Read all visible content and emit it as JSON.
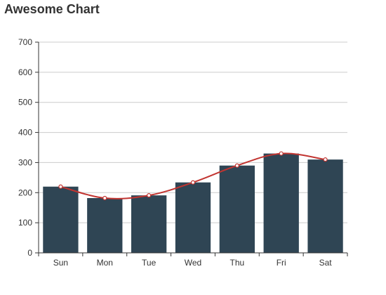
{
  "chart_data": {
    "type": "bar",
    "title": "Awesome Chart",
    "categories": [
      "Sun",
      "Mon",
      "Tue",
      "Wed",
      "Thu",
      "Fri",
      "Sat"
    ],
    "series": [
      {
        "type": "bar",
        "values": [
          220,
          182,
          191,
          234,
          290,
          330,
          310
        ]
      },
      {
        "type": "line",
        "values": [
          220,
          182,
          191,
          234,
          290,
          330,
          310
        ]
      }
    ],
    "ylim": [
      0,
      700
    ],
    "yticks": [
      0,
      100,
      200,
      300,
      400,
      500,
      600,
      700
    ],
    "grid": true,
    "colors": {
      "bar": "#2f4554",
      "line": "#c23531",
      "grid": "#cccccc",
      "axis": "#333333"
    }
  }
}
